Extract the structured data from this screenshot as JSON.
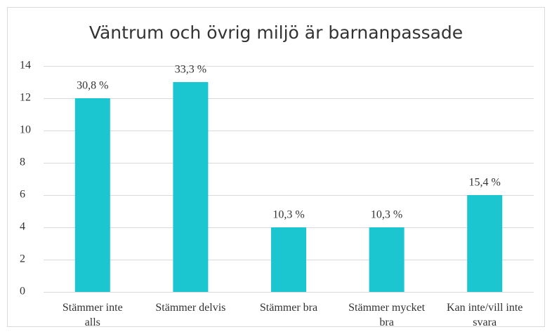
{
  "chart_data": {
    "type": "bar",
    "title": "Väntrum och övrig miljö är barnanpassade",
    "categories": [
      "Stämmer inte alls",
      "Stämmer delvis",
      "Stämmer bra",
      "Stämmer mycket bra",
      "Kan inte/vill inte svara"
    ],
    "values": [
      12,
      13,
      4,
      4,
      6
    ],
    "value_labels": [
      "30,8 %",
      "33,3 %",
      "10,3 %",
      "10,3 %",
      "15,4 %"
    ],
    "color": "#1bc6d1",
    "ylim": [
      0,
      14
    ],
    "yticks": [
      0,
      2,
      4,
      6,
      8,
      10,
      12,
      14
    ],
    "grid": true
  }
}
